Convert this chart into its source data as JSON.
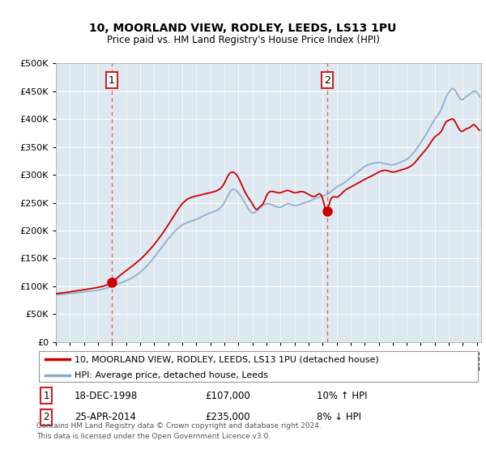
{
  "title": "10, MOORLAND VIEW, RODLEY, LEEDS, LS13 1PU",
  "subtitle": "Price paid vs. HM Land Registry's House Price Index (HPI)",
  "legend_line1": "10, MOORLAND VIEW, RODLEY, LEEDS, LS13 1PU (detached house)",
  "legend_line2": "HPI: Average price, detached house, Leeds",
  "footnote_line1": "Contains HM Land Registry data © Crown copyright and database right 2024.",
  "footnote_line2": "This data is licensed under the Open Government Licence v3.0.",
  "sale1_date": "18-DEC-1998",
  "sale1_price": 107000,
  "sale1_label": "10% ↑ HPI",
  "sale1_year": 1998.96,
  "sale2_date": "25-APR-2014",
  "sale2_price": 235000,
  "sale2_label": "8% ↓ HPI",
  "sale2_year": 2014.32,
  "ylim": [
    0,
    500000
  ],
  "yticks": [
    0,
    50000,
    100000,
    150000,
    200000,
    250000,
    300000,
    350000,
    400000,
    450000,
    500000
  ],
  "xlim_min": 1995,
  "xlim_max": 2025.3,
  "background_color": "#dde8f0",
  "red_line_color": "#cc0000",
  "blue_line_color": "#88aacc",
  "grid_color": "#ffffff",
  "dashed_line_color": "#dd4444",
  "hpi_points": [
    [
      1995.0,
      85000
    ],
    [
      1996.0,
      87000
    ],
    [
      1997.0,
      90000
    ],
    [
      1998.0,
      93000
    ],
    [
      1999.0,
      100000
    ],
    [
      2000.0,
      110000
    ],
    [
      2001.0,
      125000
    ],
    [
      2002.0,
      152000
    ],
    [
      2003.0,
      185000
    ],
    [
      2004.0,
      210000
    ],
    [
      2005.0,
      220000
    ],
    [
      2006.0,
      232000
    ],
    [
      2007.0,
      250000
    ],
    [
      2007.5,
      272000
    ],
    [
      2008.0,
      268000
    ],
    [
      2008.5,
      248000
    ],
    [
      2009.0,
      232000
    ],
    [
      2009.5,
      240000
    ],
    [
      2010.0,
      248000
    ],
    [
      2010.5,
      245000
    ],
    [
      2011.0,
      242000
    ],
    [
      2011.5,
      248000
    ],
    [
      2012.0,
      245000
    ],
    [
      2012.5,
      248000
    ],
    [
      2013.0,
      252000
    ],
    [
      2013.5,
      258000
    ],
    [
      2014.0,
      262000
    ],
    [
      2014.5,
      268000
    ],
    [
      2015.0,
      278000
    ],
    [
      2015.5,
      285000
    ],
    [
      2016.0,
      295000
    ],
    [
      2016.5,
      305000
    ],
    [
      2017.0,
      315000
    ],
    [
      2017.5,
      320000
    ],
    [
      2018.0,
      322000
    ],
    [
      2018.5,
      320000
    ],
    [
      2019.0,
      318000
    ],
    [
      2019.5,
      322000
    ],
    [
      2020.0,
      328000
    ],
    [
      2020.5,
      340000
    ],
    [
      2021.0,
      358000
    ],
    [
      2021.5,
      378000
    ],
    [
      2022.0,
      400000
    ],
    [
      2022.5,
      420000
    ],
    [
      2022.8,
      440000
    ],
    [
      2023.0,
      448000
    ],
    [
      2023.3,
      455000
    ],
    [
      2023.6,
      445000
    ],
    [
      2023.9,
      435000
    ],
    [
      2024.2,
      440000
    ],
    [
      2024.5,
      445000
    ],
    [
      2024.8,
      450000
    ],
    [
      2025.0,
      448000
    ],
    [
      2025.2,
      440000
    ]
  ],
  "red_points": [
    [
      1995.0,
      87000
    ],
    [
      1996.0,
      90000
    ],
    [
      1997.0,
      94000
    ],
    [
      1998.0,
      98000
    ],
    [
      1998.96,
      107000
    ],
    [
      1999.5,
      118000
    ],
    [
      2000.0,
      128000
    ],
    [
      2001.0,
      148000
    ],
    [
      2002.0,
      175000
    ],
    [
      2003.0,
      210000
    ],
    [
      2003.5,
      230000
    ],
    [
      2004.0,
      248000
    ],
    [
      2004.5,
      258000
    ],
    [
      2005.0,
      262000
    ],
    [
      2005.5,
      265000
    ],
    [
      2006.0,
      268000
    ],
    [
      2006.5,
      272000
    ],
    [
      2007.0,
      285000
    ],
    [
      2007.3,
      300000
    ],
    [
      2007.6,
      305000
    ],
    [
      2008.0,
      295000
    ],
    [
      2008.5,
      268000
    ],
    [
      2009.0,
      248000
    ],
    [
      2009.3,
      238000
    ],
    [
      2009.5,
      242000
    ],
    [
      2009.8,
      250000
    ],
    [
      2010.0,
      262000
    ],
    [
      2010.5,
      270000
    ],
    [
      2011.0,
      268000
    ],
    [
      2011.5,
      272000
    ],
    [
      2012.0,
      268000
    ],
    [
      2012.5,
      270000
    ],
    [
      2013.0,
      265000
    ],
    [
      2013.5,
      262000
    ],
    [
      2014.0,
      258000
    ],
    [
      2014.32,
      235000
    ],
    [
      2014.5,
      250000
    ],
    [
      2015.0,
      260000
    ],
    [
      2015.5,
      270000
    ],
    [
      2016.0,
      278000
    ],
    [
      2016.5,
      285000
    ],
    [
      2017.0,
      292000
    ],
    [
      2017.5,
      298000
    ],
    [
      2018.0,
      305000
    ],
    [
      2018.5,
      308000
    ],
    [
      2019.0,
      305000
    ],
    [
      2019.5,
      308000
    ],
    [
      2020.0,
      312000
    ],
    [
      2020.5,
      320000
    ],
    [
      2021.0,
      335000
    ],
    [
      2021.5,
      350000
    ],
    [
      2022.0,
      368000
    ],
    [
      2022.5,
      380000
    ],
    [
      2022.8,
      395000
    ],
    [
      2023.0,
      398000
    ],
    [
      2023.3,
      400000
    ],
    [
      2023.6,
      388000
    ],
    [
      2023.9,
      378000
    ],
    [
      2024.2,
      382000
    ],
    [
      2024.5,
      385000
    ],
    [
      2024.8,
      390000
    ],
    [
      2025.0,
      385000
    ],
    [
      2025.2,
      380000
    ]
  ]
}
